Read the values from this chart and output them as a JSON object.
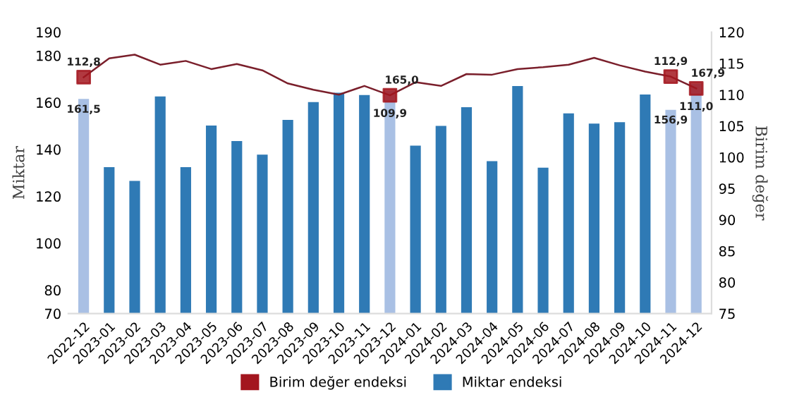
{
  "chart_data": {
    "type": "bar",
    "ylabel": "Miktar",
    "y2label": "Birim değer",
    "categories": [
      "2022-12",
      "2023-01",
      "2023-02",
      "2023-03",
      "2023-04",
      "2023-05",
      "2023-06",
      "2023-07",
      "2023-08",
      "2023-09",
      "2023-10",
      "2023-11",
      "2023-12",
      "2024-01",
      "2024-02",
      "2024-03",
      "2024-04",
      "2024-05",
      "2024-06",
      "2024-07",
      "2024-08",
      "2024-09",
      "2024-10",
      "2024-11",
      "2024-12"
    ],
    "series": [
      {
        "type": "line",
        "axis": "y2",
        "color": "#7a1f2b",
        "values": [
          112.8,
          115.8,
          116.4,
          114.8,
          115.4,
          114.1,
          114.9,
          113.9,
          111.8,
          110.8,
          110.0,
          111.4,
          109.9,
          112.0,
          111.4,
          113.3,
          113.2,
          114.1,
          114.4,
          114.8,
          115.9,
          114.7,
          113.7,
          112.9,
          111.0
        ]
      },
      {
        "name": "Birim değer endeksi",
        "type": "scatter",
        "axis": "y2",
        "color": "#a3161f",
        "marker": "square",
        "values": [
          112.8,
          null,
          null,
          null,
          null,
          null,
          null,
          null,
          null,
          null,
          null,
          null,
          109.9,
          null,
          null,
          null,
          null,
          null,
          null,
          null,
          null,
          null,
          null,
          112.9,
          111.0
        ],
        "value_labels": [
          "112,8",
          null,
          null,
          null,
          null,
          null,
          null,
          null,
          null,
          null,
          null,
          null,
          "109,9",
          null,
          null,
          null,
          null,
          null,
          null,
          null,
          null,
          null,
          null,
          "112,9",
          "111,0"
        ]
      },
      {
        "name": "Miktar endeksi",
        "color": "#2f7ab5",
        "colors": [
          "#a9c0e4",
          "#2f7ab5",
          "#2f7ab5",
          "#2f7ab5",
          "#2f7ab5",
          "#2f7ab5",
          "#2f7ab5",
          "#2f7ab5",
          "#2f7ab5",
          "#2f7ab5",
          "#2f7ab5",
          "#2f7ab5",
          "#a9c0e4",
          "#2f7ab5",
          "#2f7ab5",
          "#2f7ab5",
          "#2f7ab5",
          "#2f7ab5",
          "#2f7ab5",
          "#2f7ab5",
          "#2f7ab5",
          "#2f7ab5",
          "#2f7ab5",
          "#a9c0e4",
          "#a9c0e4"
        ],
        "values": [
          161.5,
          132.4,
          126.6,
          162.6,
          132.4,
          150.2,
          143.6,
          137.8,
          152.6,
          160.2,
          164.2,
          163.2,
          165.0,
          141.6,
          150.0,
          158.0,
          135.0,
          167.0,
          132.2,
          155.4,
          151.0,
          151.6,
          163.4,
          156.9,
          167.9
        ],
        "value_labels": [
          "161,5",
          null,
          null,
          null,
          null,
          null,
          null,
          null,
          null,
          null,
          null,
          null,
          "165,0",
          null,
          null,
          null,
          null,
          null,
          null,
          null,
          null,
          null,
          null,
          "156,9",
          "167,9"
        ]
      }
    ],
    "ylim": [
      70,
      190
    ],
    "yticks": [
      70,
      80,
      100,
      120,
      140,
      160,
      180,
      190
    ],
    "y2lim": [
      75,
      120
    ],
    "y2ticks": [
      75,
      80,
      85,
      90,
      95,
      100,
      105,
      110,
      115,
      120
    ],
    "legend": "bottom",
    "grid": false
  }
}
